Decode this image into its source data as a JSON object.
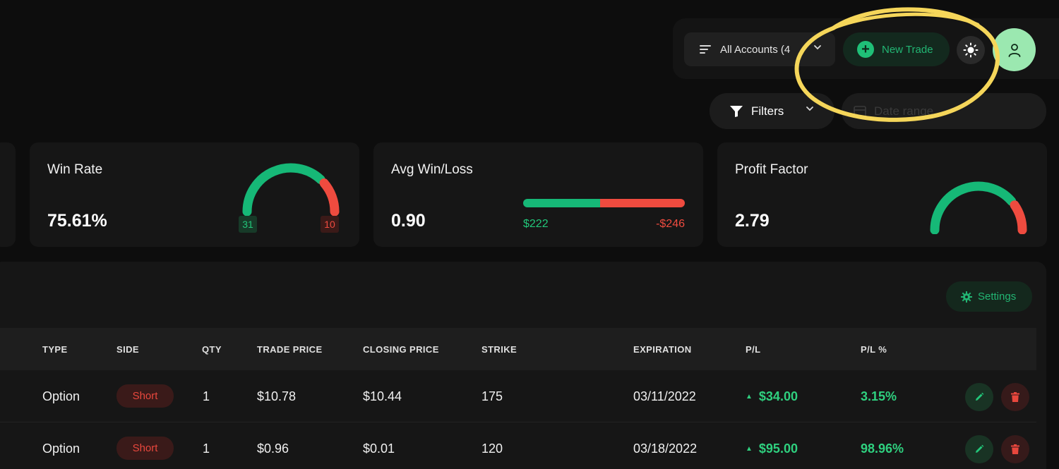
{
  "header": {
    "accounts_label": "All Accounts (4",
    "new_trade_label": "New Trade"
  },
  "filters": {
    "filters_label": "Filters",
    "date_range_placeholder": "Date range"
  },
  "stats": {
    "win_rate": {
      "title": "Win Rate",
      "value": "75.61%",
      "wins": "31",
      "losses": "10",
      "win_fraction": 0.7561
    },
    "avg_win_loss": {
      "title": "Avg Win/Loss",
      "value": "0.90",
      "avg_win": "$222",
      "avg_loss": "-$246",
      "win_share": 0.474
    },
    "profit_factor": {
      "title": "Profit Factor",
      "value": "2.79",
      "gauge_fraction": 0.79
    }
  },
  "table": {
    "settings_label": "Settings",
    "columns": {
      "type": "TYPE",
      "side": "SIDE",
      "qty": "QTY",
      "trade_price": "TRADE PRICE",
      "closing_price": "CLOSING PRICE",
      "strike": "STRIKE",
      "expiration": "EXPIRATION",
      "pl": "P/L",
      "pl_pct": "P/L %"
    },
    "rows": [
      {
        "type": "Option",
        "side": "Short",
        "qty": "1",
        "trade_price": "$10.78",
        "closing_price": "$10.44",
        "strike": "175",
        "expiration": "03/11/2022",
        "pl": "$34.00",
        "pl_pct": "3.15%"
      },
      {
        "type": "Option",
        "side": "Short",
        "qty": "1",
        "trade_price": "$0.96",
        "closing_price": "$0.01",
        "strike": "120",
        "expiration": "03/18/2022",
        "pl": "$95.00",
        "pl_pct": "98.96%"
      }
    ]
  },
  "colors": {
    "accent_green": "#22b573",
    "loss_red": "#ef4b3f",
    "highlight_yellow": "#f5d65a"
  },
  "icons": [
    "menu-lines-icon",
    "chevron-down-icon",
    "plus-circle-icon",
    "sun-icon",
    "user-icon",
    "funnel-icon",
    "calendar-icon",
    "gear-icon",
    "pencil-icon",
    "trash-icon",
    "triangle-up-icon"
  ]
}
